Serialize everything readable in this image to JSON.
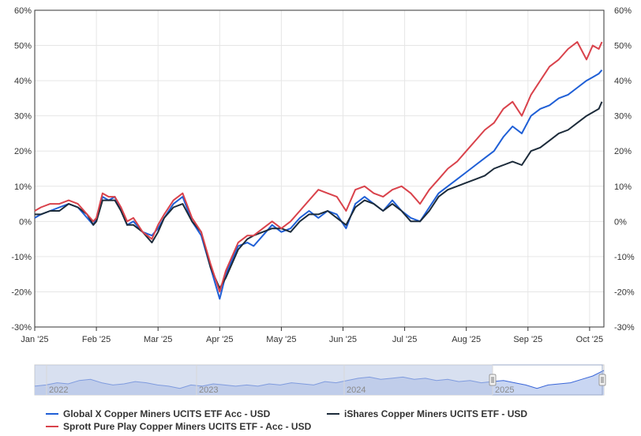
{
  "chart_data": {
    "type": "line",
    "yaxis_ticks": [
      "60%",
      "50%",
      "40%",
      "30%",
      "20%",
      "10%",
      "0%",
      "-10%",
      "-20%",
      "-30%"
    ],
    "ylim": [
      -30,
      60
    ],
    "x_ticks": [
      "Jan '25",
      "Feb '25",
      "Mar '25",
      "Apr '25",
      "May '25",
      "Jun '25",
      "Jul '25",
      "Aug '25",
      "Sep '25",
      "Oct '25"
    ],
    "x_tick_months": [
      0,
      1,
      2,
      3,
      4,
      5,
      6,
      7,
      8,
      9
    ],
    "grid": true,
    "series": [
      {
        "name": "Global X Copper Miners UCITS ETF Acc - USD",
        "color": "#1f5fd6",
        "x": [
          0,
          0.1,
          0.25,
          0.4,
          0.55,
          0.7,
          0.85,
          0.95,
          1.0,
          1.1,
          1.2,
          1.3,
          1.4,
          1.5,
          1.6,
          1.75,
          1.9,
          2.0,
          2.1,
          2.25,
          2.4,
          2.55,
          2.7,
          2.85,
          3.0,
          3.1,
          3.2,
          3.3,
          3.45,
          3.55,
          3.7,
          3.85,
          4.0,
          4.15,
          4.3,
          4.45,
          4.6,
          4.75,
          4.9,
          5.05,
          5.2,
          5.35,
          5.5,
          5.65,
          5.8,
          5.95,
          6.1,
          6.25,
          6.4,
          6.55,
          6.7,
          6.85,
          7.0,
          7.15,
          7.3,
          7.45,
          7.6,
          7.75,
          7.9,
          8.05,
          8.2,
          8.35,
          8.5,
          8.65,
          8.8,
          8.95,
          9.05,
          9.15,
          9.2
        ],
        "values": [
          1,
          2,
          3,
          4,
          5,
          4,
          1,
          -1,
          1,
          7,
          6,
          7,
          3,
          -1,
          0,
          -3,
          -4,
          -2,
          1,
          5,
          7,
          0,
          -4,
          -13,
          -22,
          -15,
          -11,
          -7,
          -6,
          -7,
          -4,
          -1,
          -3,
          -2,
          1,
          3,
          1,
          3,
          2,
          -2,
          5,
          7,
          5,
          3,
          6,
          3,
          1,
          0,
          4,
          8,
          10,
          12,
          14,
          16,
          18,
          20,
          24,
          27,
          25,
          30,
          32,
          33,
          35,
          36,
          38,
          40,
          41,
          42,
          43
        ]
      },
      {
        "name": "iShares Copper Miners UCITS ETF - USD",
        "color": "#1c2b3a",
        "x": [
          0,
          0.1,
          0.25,
          0.4,
          0.55,
          0.7,
          0.85,
          0.95,
          1.0,
          1.1,
          1.2,
          1.3,
          1.4,
          1.5,
          1.6,
          1.75,
          1.9,
          2.0,
          2.1,
          2.25,
          2.4,
          2.55,
          2.7,
          2.85,
          3.0,
          3.1,
          3.2,
          3.3,
          3.45,
          3.55,
          3.7,
          3.85,
          4.0,
          4.15,
          4.3,
          4.45,
          4.6,
          4.75,
          4.9,
          5.05,
          5.2,
          5.35,
          5.5,
          5.65,
          5.8,
          5.95,
          6.1,
          6.25,
          6.4,
          6.55,
          6.7,
          6.85,
          7.0,
          7.15,
          7.3,
          7.45,
          7.6,
          7.75,
          7.9,
          8.05,
          8.2,
          8.35,
          8.5,
          8.65,
          8.8,
          8.95,
          9.05,
          9.15,
          9.2
        ],
        "values": [
          2,
          2,
          3,
          3,
          5,
          4,
          2,
          -1,
          0,
          6,
          6,
          6,
          3,
          -1,
          -1,
          -3,
          -6,
          -3,
          1,
          4,
          5,
          0,
          -3,
          -13,
          -19,
          -16,
          -12,
          -8,
          -5,
          -4,
          -3,
          -2,
          -2,
          -3,
          0,
          2,
          2,
          3,
          1,
          -1,
          4,
          6,
          5,
          3,
          5,
          3,
          0,
          0,
          3,
          7,
          9,
          10,
          11,
          12,
          13,
          15,
          16,
          17,
          16,
          20,
          21,
          23,
          25,
          26,
          28,
          30,
          31,
          32,
          34
        ]
      },
      {
        "name": "Sprott Pure Play Copper Miners UCITS ETF - Acc - USD",
        "color": "#d9424b",
        "x": [
          0,
          0.1,
          0.25,
          0.4,
          0.55,
          0.7,
          0.85,
          0.95,
          1.0,
          1.1,
          1.2,
          1.3,
          1.4,
          1.5,
          1.6,
          1.75,
          1.9,
          2.0,
          2.1,
          2.25,
          2.4,
          2.55,
          2.7,
          2.85,
          3.0,
          3.1,
          3.2,
          3.3,
          3.45,
          3.55,
          3.7,
          3.85,
          4.0,
          4.15,
          4.3,
          4.45,
          4.6,
          4.75,
          4.9,
          5.05,
          5.2,
          5.35,
          5.5,
          5.65,
          5.8,
          5.95,
          6.1,
          6.25,
          6.4,
          6.55,
          6.7,
          6.85,
          7.0,
          7.15,
          7.3,
          7.45,
          7.6,
          7.75,
          7.9,
          8.05,
          8.2,
          8.35,
          8.5,
          8.65,
          8.8,
          8.95,
          9.05,
          9.15,
          9.2
        ],
        "values": [
          3,
          4,
          5,
          5,
          6,
          5,
          2,
          0,
          1,
          8,
          7,
          7,
          4,
          0,
          1,
          -3,
          -5,
          -1,
          2,
          6,
          8,
          1,
          -3,
          -12,
          -20,
          -14,
          -10,
          -6,
          -4,
          -4,
          -2,
          0,
          -2,
          0,
          3,
          6,
          9,
          8,
          7,
          3,
          9,
          10,
          8,
          7,
          9,
          10,
          8,
          5,
          9,
          12,
          15,
          17,
          20,
          23,
          26,
          28,
          32,
          34,
          30,
          36,
          40,
          44,
          46,
          49,
          51,
          46,
          50,
          49,
          51
        ]
      }
    ]
  },
  "navigator": {
    "years": [
      "2022",
      "2023",
      "2024",
      "2025"
    ],
    "values": [
      0,
      1,
      3,
      2,
      5,
      6,
      3,
      1,
      2,
      4,
      3,
      1,
      0,
      -2,
      1,
      0,
      2,
      1,
      0,
      1,
      0,
      2,
      1,
      3,
      2,
      1,
      4,
      3,
      5,
      7,
      8,
      6,
      7,
      8,
      6,
      7,
      5,
      6,
      4,
      5,
      3,
      4,
      5,
      3,
      1,
      -2,
      1,
      2,
      3,
      6,
      9,
      14
    ],
    "colors": {
      "line": "#3a66d8",
      "fill": "#c9d6f2",
      "shade": "#b8c6e4"
    }
  }
}
